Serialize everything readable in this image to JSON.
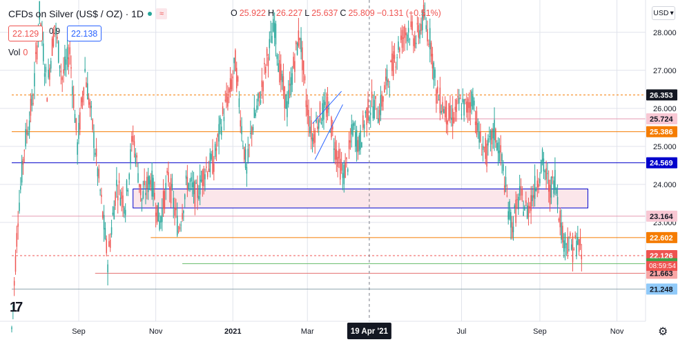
{
  "header": {
    "symbol": "CFDs on Silver (US$ / OZ) · 1D",
    "ohlc": [
      {
        "k": "O",
        "v": "25.922"
      },
      {
        "k": "H",
        "v": "26.227"
      },
      {
        "k": "L",
        "v": "25.637"
      },
      {
        "k": "C",
        "v": "25.809"
      },
      {
        "k": "",
        "v": "−0.131 (−0.51%)"
      }
    ],
    "sell": "22.129",
    "spread": "0.9",
    "buy": "22.138",
    "vol_label": "Vol",
    "vol_value": "0",
    "currency": "USD"
  },
  "colors": {
    "up": "#26a69a",
    "down": "#ef5350",
    "blue": "#2962ff",
    "navy": "#0000cc",
    "orange": "#f57c00",
    "pink": "#e59ab1",
    "grid": "#e0e3eb",
    "text": "#131722"
  },
  "chart_data": {
    "type": "candlestick",
    "title": "CFDs on Silver (US$ / OZ) · 1D",
    "y_range": [
      20.4,
      28.85
    ],
    "y_ticks": [
      23.0,
      24.0,
      25.0,
      26.0,
      27.0,
      28.0
    ],
    "y_tick_labels": [
      "23.000",
      "24.000",
      "25.000",
      "26.000",
      "27.000",
      "28.000"
    ],
    "x_ticks": [
      {
        "label": "Sep",
        "day": 53
      },
      {
        "label": "Nov",
        "day": 114
      },
      {
        "label": "2021",
        "day": 175
      },
      {
        "label": "Mar",
        "day": 234
      },
      {
        "label": "19 Apr '21",
        "day": 283
      },
      {
        "label": "Jul",
        "day": 356
      },
      {
        "label": "Sep",
        "day": 418
      },
      {
        "label": "Nov",
        "day": 479
      }
    ],
    "crosshair_label": "19 Apr '21",
    "countdown": "08:59:54",
    "keypoints": [
      [
        0,
        20.2
      ],
      [
        5,
        23.2
      ],
      [
        10,
        25.0
      ],
      [
        17,
        26.3
      ],
      [
        22,
        28.5
      ],
      [
        28,
        26.5
      ],
      [
        34,
        28.2
      ],
      [
        40,
        26.8
      ],
      [
        46,
        27.5
      ],
      [
        52,
        25.0
      ],
      [
        58,
        27.0
      ],
      [
        64,
        25.5
      ],
      [
        70,
        23.8
      ],
      [
        76,
        22.0
      ],
      [
        83,
        24.0
      ],
      [
        90,
        23.5
      ],
      [
        96,
        25.3
      ],
      [
        103,
        23.6
      ],
      [
        110,
        24.2
      ],
      [
        117,
        23.0
      ],
      [
        124,
        24.2
      ],
      [
        132,
        22.8
      ],
      [
        139,
        24.1
      ],
      [
        146,
        23.7
      ],
      [
        153,
        24.4
      ],
      [
        160,
        24.6
      ],
      [
        167,
        25.8
      ],
      [
        173,
        26.5
      ],
      [
        177,
        27.2
      ],
      [
        182,
        25.5
      ],
      [
        186,
        24.3
      ],
      [
        190,
        25.5
      ],
      [
        196,
        26.2
      ],
      [
        202,
        27.3
      ],
      [
        208,
        28.2
      ],
      [
        212,
        27.0
      ],
      [
        218,
        26.0
      ],
      [
        224,
        27.3
      ],
      [
        228,
        28.0
      ],
      [
        233,
        26.2
      ],
      [
        238,
        25.2
      ],
      [
        243,
        25.8
      ],
      [
        250,
        26.0
      ],
      [
        256,
        25.0
      ],
      [
        262,
        24.2
      ],
      [
        266,
        24.6
      ],
      [
        270,
        25.5
      ],
      [
        275,
        25.0
      ],
      [
        280,
        25.8
      ],
      [
        285,
        26.1
      ],
      [
        291,
        25.9
      ],
      [
        296,
        26.6
      ],
      [
        302,
        27.2
      ],
      [
        308,
        27.8
      ],
      [
        314,
        28.1
      ],
      [
        320,
        27.8
      ],
      [
        326,
        28.4
      ],
      [
        332,
        27.7
      ],
      [
        336,
        26.4
      ],
      [
        342,
        26.0
      ],
      [
        348,
        25.7
      ],
      [
        354,
        26.1
      ],
      [
        360,
        26.0
      ],
      [
        365,
        26.3
      ],
      [
        370,
        25.2
      ],
      [
        376,
        24.8
      ],
      [
        382,
        25.4
      ],
      [
        388,
        24.6
      ],
      [
        392,
        23.6
      ],
      [
        396,
        22.9
      ],
      [
        402,
        23.7
      ],
      [
        408,
        23.3
      ],
      [
        414,
        23.9
      ],
      [
        420,
        24.6
      ],
      [
        426,
        23.8
      ],
      [
        430,
        24.2
      ],
      [
        436,
        22.6
      ],
      [
        440,
        22.5
      ],
      [
        444,
        22.3
      ],
      [
        448,
        22.5
      ],
      [
        451,
        22.13
      ]
    ],
    "h_lines": [
      {
        "price": 26.353,
        "color": "#f57c00",
        "dashed": true,
        "x_from_day": 0
      },
      {
        "price": 25.724,
        "color": "#e59ab1",
        "dashed": false,
        "x_from_day": 290
      },
      {
        "price": 25.386,
        "color": "#f57c00",
        "dashed": false,
        "x_from_day": 0
      },
      {
        "price": 24.569,
        "color": "#0000cc",
        "dashed": false,
        "x_from_day": 0
      },
      {
        "price": 23.164,
        "color": "#e59ab1",
        "dashed": false,
        "x_from_day": 0
      },
      {
        "price": 22.602,
        "color": "#f57c00",
        "dashed": false,
        "x_from_day": 110
      },
      {
        "price": 22.126,
        "color": "#ef5350",
        "dashed": true,
        "x_from_day": 0
      },
      {
        "price": 21.915,
        "color": "#66bb6a",
        "dashed": false,
        "x_from_day": 135
      },
      {
        "price": 21.663,
        "color": "#e57373",
        "dashed": false,
        "x_from_day": 66
      },
      {
        "price": 21.248,
        "color": "#90a4ae",
        "dashed": false,
        "x_from_day": 0
      }
    ],
    "zone": {
      "day_from": 96,
      "day_to": 456,
      "price_low": 23.38,
      "price_high": 23.88,
      "fill": "#fbe6ea",
      "stroke": "#0000cc"
    },
    "trend_lines": [
      {
        "from": [
          240,
          24.65
        ],
        "to": [
          262,
          26.1
        ],
        "color": "#2962ff"
      },
      {
        "from": [
          238,
          25.6
        ],
        "to": [
          261,
          26.45
        ],
        "color": "#2962ff"
      }
    ],
    "price_labels": [
      {
        "text": "26.353",
        "price": 26.353,
        "bg": "#131722",
        "fg": "#ffffff"
      },
      {
        "text": "25.724",
        "price": 25.724,
        "bg": "#f8c8d4",
        "fg": "#131722"
      },
      {
        "text": "25.386",
        "price": 25.386,
        "bg": "#f57c00",
        "fg": "#ffffff"
      },
      {
        "text": "24.569",
        "price": 24.569,
        "bg": "#0000cc",
        "fg": "#ffffff"
      },
      {
        "text": "23.164",
        "price": 23.164,
        "bg": "#f8c8d4",
        "fg": "#131722"
      },
      {
        "text": "22.602",
        "price": 22.602,
        "bg": "#f57c00",
        "fg": "#ffffff"
      },
      {
        "text": "22.126",
        "price": 22.126,
        "bg": "#ef5350",
        "fg": "#ffffff"
      },
      {
        "text": "21.915",
        "price": 21.915,
        "bg": "#43a047",
        "fg": "#ffffff"
      },
      {
        "text": "21.663",
        "price": 21.663,
        "bg": "#f8a5a5",
        "fg": "#131722"
      },
      {
        "text": "21.248",
        "price": 21.248,
        "bg": "#90caf9",
        "fg": "#131722"
      }
    ]
  }
}
